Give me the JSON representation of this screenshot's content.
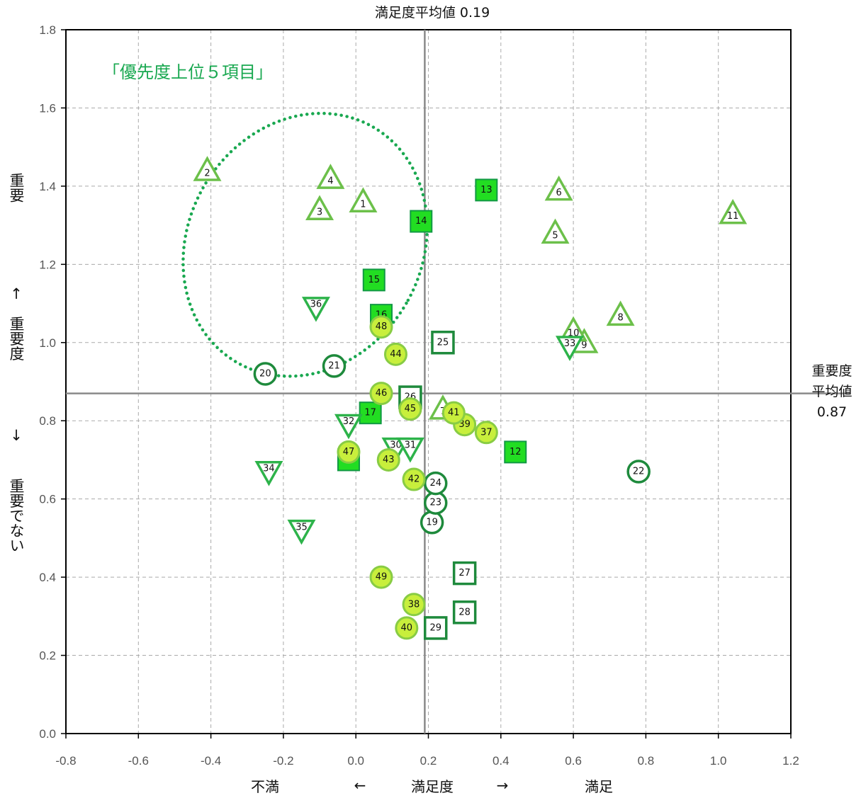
{
  "chart_data": {
    "type": "scatter",
    "title": "満足度平均値 0.19",
    "xlabel": "満足度",
    "x_left_label": "不満",
    "x_right_label": "満足",
    "x_arrow_left": "←",
    "x_arrow_right": "→",
    "y_top_label": "重要",
    "y_up_arrow": "↑",
    "y_mid_label": "重要度",
    "y_down_arrow": "↓",
    "y_bottom_label": "重要でない",
    "mean_label_lines": [
      "重要度",
      "平均値",
      "0.87"
    ],
    "annotation": "「優先度上位５項目」",
    "xlim": [
      -0.8,
      1.2
    ],
    "ylim": [
      0.0,
      1.8
    ],
    "x_ticks": [
      "-0.8",
      "-0.6",
      "-0.4",
      "-0.2",
      "0.0",
      "0.2",
      "0.4",
      "0.6",
      "0.8",
      "1.0",
      "1.2"
    ],
    "y_ticks": [
      "0.0",
      "0.2",
      "0.4",
      "0.6",
      "0.8",
      "1.0",
      "1.2",
      "1.4",
      "1.6",
      "1.8"
    ],
    "grid": true,
    "mean_x": 0.19,
    "mean_y": 0.87,
    "colors": {
      "triangle": "#6cc04a",
      "square_fill": "#22dd22",
      "square_edge": "#119944",
      "square_open": "#1e8a3c",
      "circle_open": "#1e8a3c",
      "circle_fill": "#c8ef3c",
      "circle_edge": "#88cc44",
      "down_triangle": "#2db34a",
      "ellipse": "#19a850",
      "mean_line": "#8a8a8a",
      "grid": "#aaaaaa"
    },
    "points": [
      {
        "id": "1",
        "x": 0.02,
        "y": 1.36,
        "shape": "triangle"
      },
      {
        "id": "2",
        "x": -0.41,
        "y": 1.44,
        "shape": "triangle"
      },
      {
        "id": "3",
        "x": -0.1,
        "y": 1.34,
        "shape": "triangle"
      },
      {
        "id": "4",
        "x": -0.07,
        "y": 1.42,
        "shape": "triangle"
      },
      {
        "id": "5",
        "x": 0.55,
        "y": 1.28,
        "shape": "triangle"
      },
      {
        "id": "6",
        "x": 0.56,
        "y": 1.39,
        "shape": "triangle"
      },
      {
        "id": "7",
        "x": 0.24,
        "y": 0.83,
        "shape": "triangle"
      },
      {
        "id": "8",
        "x": 0.73,
        "y": 1.07,
        "shape": "triangle"
      },
      {
        "id": "9",
        "x": 0.63,
        "y": 1.0,
        "shape": "triangle"
      },
      {
        "id": "10",
        "x": 0.6,
        "y": 1.03,
        "shape": "triangle"
      },
      {
        "id": "11",
        "x": 1.04,
        "y": 1.33,
        "shape": "triangle"
      },
      {
        "id": "12",
        "x": 0.44,
        "y": 0.72,
        "shape": "square-filled"
      },
      {
        "id": "13",
        "x": 0.36,
        "y": 1.39,
        "shape": "square-filled"
      },
      {
        "id": "14",
        "x": 0.18,
        "y": 1.31,
        "shape": "square-filled"
      },
      {
        "id": "15",
        "x": 0.05,
        "y": 1.16,
        "shape": "square-filled"
      },
      {
        "id": "16",
        "x": 0.07,
        "y": 1.07,
        "shape": "square-filled"
      },
      {
        "id": "17",
        "x": 0.04,
        "y": 0.82,
        "shape": "square-filled"
      },
      {
        "id": "18",
        "x": -0.02,
        "y": 0.7,
        "shape": "square-filled"
      },
      {
        "id": "19",
        "x": 0.21,
        "y": 0.54,
        "shape": "circle-open"
      },
      {
        "id": "20",
        "x": -0.25,
        "y": 0.92,
        "shape": "circle-open"
      },
      {
        "id": "21",
        "x": -0.06,
        "y": 0.94,
        "shape": "circle-open"
      },
      {
        "id": "22",
        "x": 0.78,
        "y": 0.67,
        "shape": "circle-open"
      },
      {
        "id": "23",
        "x": 0.22,
        "y": 0.59,
        "shape": "circle-open"
      },
      {
        "id": "24",
        "x": 0.22,
        "y": 0.64,
        "shape": "circle-open"
      },
      {
        "id": "25",
        "x": 0.24,
        "y": 1.0,
        "shape": "square-open"
      },
      {
        "id": "26",
        "x": 0.15,
        "y": 0.86,
        "shape": "square-open"
      },
      {
        "id": "27",
        "x": 0.3,
        "y": 0.41,
        "shape": "square-open"
      },
      {
        "id": "28",
        "x": 0.3,
        "y": 0.31,
        "shape": "square-open"
      },
      {
        "id": "29",
        "x": 0.22,
        "y": 0.27,
        "shape": "square-open"
      },
      {
        "id": "30",
        "x": 0.11,
        "y": 0.73,
        "shape": "down-triangle"
      },
      {
        "id": "31",
        "x": 0.15,
        "y": 0.73,
        "shape": "down-triangle"
      },
      {
        "id": "32",
        "x": -0.02,
        "y": 0.79,
        "shape": "down-triangle"
      },
      {
        "id": "33",
        "x": 0.59,
        "y": 0.99,
        "shape": "down-triangle"
      },
      {
        "id": "34",
        "x": -0.24,
        "y": 0.67,
        "shape": "down-triangle"
      },
      {
        "id": "35",
        "x": -0.15,
        "y": 0.52,
        "shape": "down-triangle"
      },
      {
        "id": "36",
        "x": -0.11,
        "y": 1.09,
        "shape": "down-triangle"
      },
      {
        "id": "37",
        "x": 0.36,
        "y": 0.77,
        "shape": "circle-filled"
      },
      {
        "id": "38",
        "x": 0.16,
        "y": 0.33,
        "shape": "circle-filled"
      },
      {
        "id": "39",
        "x": 0.3,
        "y": 0.79,
        "shape": "circle-filled"
      },
      {
        "id": "40",
        "x": 0.14,
        "y": 0.27,
        "shape": "circle-filled"
      },
      {
        "id": "41",
        "x": 0.27,
        "y": 0.82,
        "shape": "circle-filled"
      },
      {
        "id": "42",
        "x": 0.16,
        "y": 0.65,
        "shape": "circle-filled"
      },
      {
        "id": "43",
        "x": 0.09,
        "y": 0.7,
        "shape": "circle-filled"
      },
      {
        "id": "44",
        "x": 0.11,
        "y": 0.97,
        "shape": "circle-filled"
      },
      {
        "id": "45",
        "x": 0.15,
        "y": 0.83,
        "shape": "circle-filled"
      },
      {
        "id": "46",
        "x": 0.07,
        "y": 0.87,
        "shape": "circle-filled"
      },
      {
        "id": "47",
        "x": -0.02,
        "y": 0.72,
        "shape": "circle-filled"
      },
      {
        "id": "48",
        "x": 0.07,
        "y": 1.04,
        "shape": "circle-filled"
      },
      {
        "id": "49",
        "x": 0.07,
        "y": 0.4,
        "shape": "circle-filled"
      }
    ]
  }
}
